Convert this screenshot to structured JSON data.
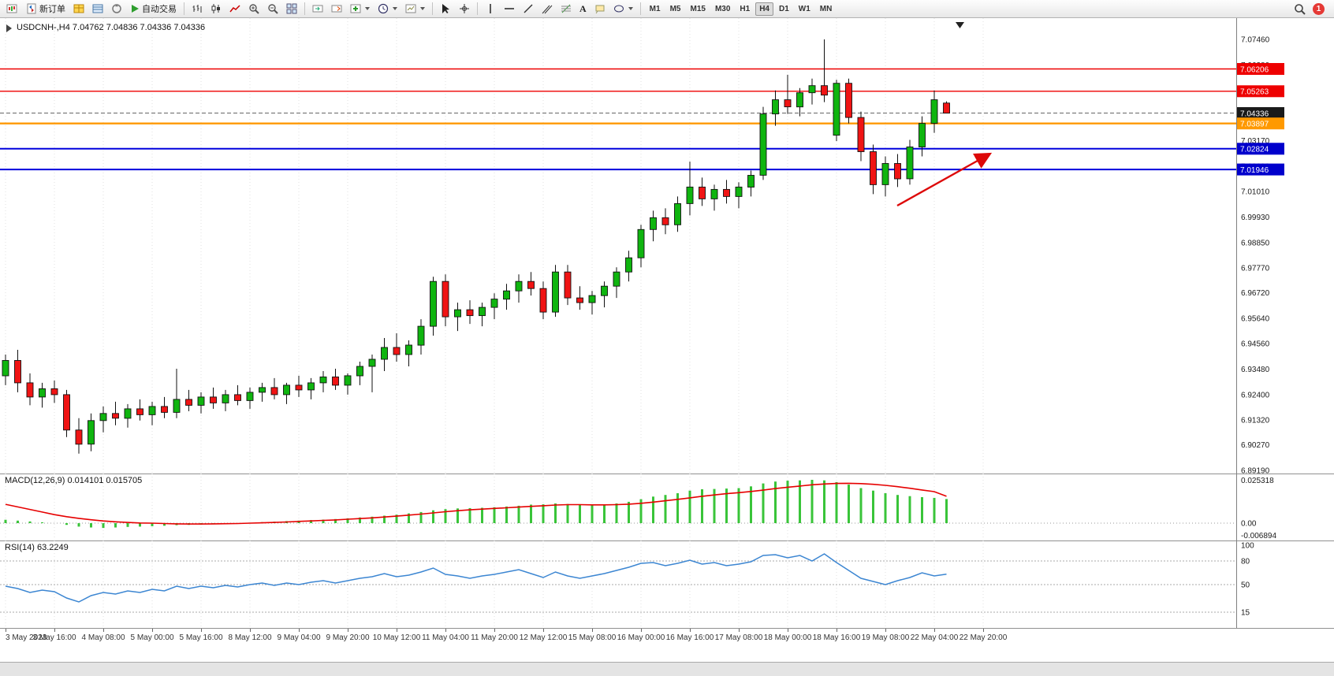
{
  "toolbar": {
    "new_order": "新订单",
    "auto_trading": "自动交易",
    "timeframes": [
      "M1",
      "M5",
      "M15",
      "M30",
      "H1",
      "H4",
      "D1",
      "W1",
      "MN"
    ],
    "active_timeframe": "H4",
    "notification_count": "1",
    "icons": {
      "text_tool": "A"
    }
  },
  "chart": {
    "title": "USDCNH-,H4 7.04762 7.04836 7.04336 7.04336",
    "symbol": "USDCNH-",
    "timeframe": "H4",
    "open": "7.04762",
    "high": "7.04836",
    "low": "7.04336",
    "close": "7.04336"
  },
  "macd": {
    "label": "MACD(12,26,9) 0.014101 0.015705",
    "axis": [
      "0.025318",
      "0.00",
      "-0.006894"
    ],
    "range": [
      -0.006894,
      0.025318
    ],
    "histogram_color": "#39c439",
    "signal_color": "#e60000",
    "histogram": [
      0.002,
      0.0015,
      0.001,
      0.0005,
      0.0,
      -0.001,
      -0.002,
      -0.0025,
      -0.0028,
      -0.0025,
      -0.0022,
      -0.002,
      -0.0018,
      -0.0015,
      -0.0012,
      -0.001,
      -0.0008,
      -0.0005,
      -0.0003,
      0.0,
      0.0003,
      0.0006,
      0.0009,
      0.0012,
      0.0015,
      0.0018,
      0.0021,
      0.0024,
      0.0028,
      0.0033,
      0.0038,
      0.0044,
      0.005,
      0.0057,
      0.0065,
      0.0075,
      0.0082,
      0.0086,
      0.0088,
      0.009,
      0.0093,
      0.0097,
      0.0102,
      0.0108,
      0.011,
      0.0115,
      0.0112,
      0.0108,
      0.0105,
      0.0108,
      0.0115,
      0.0125,
      0.014,
      0.0155,
      0.0165,
      0.0175,
      0.019,
      0.0198,
      0.02,
      0.0202,
      0.0205,
      0.0215,
      0.0232,
      0.0243,
      0.0248,
      0.025,
      0.0253,
      0.025,
      0.024,
      0.0225,
      0.0205,
      0.019,
      0.0175,
      0.0165,
      0.0158,
      0.0152,
      0.0148,
      0.0141
    ],
    "signal": [
      0.011,
      0.0095,
      0.008,
      0.0065,
      0.005,
      0.0038,
      0.0028,
      0.002,
      0.0013,
      0.0008,
      0.0004,
      0.0001,
      0.0,
      -0.0002,
      -0.0004,
      -0.0005,
      -0.0005,
      -0.0004,
      -0.0003,
      -0.0002,
      0.0,
      0.0002,
      0.0004,
      0.0007,
      0.001,
      0.0013,
      0.0016,
      0.0019,
      0.0023,
      0.0027,
      0.0031,
      0.0036,
      0.0041,
      0.0047,
      0.0053,
      0.006,
      0.0067,
      0.0073,
      0.0078,
      0.0082,
      0.0086,
      0.009,
      0.0094,
      0.0098,
      0.0102,
      0.0106,
      0.0108,
      0.0108,
      0.0107,
      0.0107,
      0.0108,
      0.0111,
      0.0116,
      0.0123,
      0.0131,
      0.0139,
      0.0148,
      0.0157,
      0.0165,
      0.0172,
      0.0178,
      0.0185,
      0.0193,
      0.0202,
      0.021,
      0.0217,
      0.0224,
      0.0229,
      0.0232,
      0.0233,
      0.0231,
      0.0227,
      0.0221,
      0.0213,
      0.0204,
      0.0194,
      0.0184,
      0.0157
    ]
  },
  "rsi": {
    "label": "RSI(14) 63.2249",
    "axis": [
      "100",
      "80",
      "50",
      "15"
    ],
    "levels": [
      80,
      50,
      15
    ],
    "line_color": "#3c86d2",
    "values": [
      48,
      45,
      40,
      43,
      41,
      33,
      28,
      36,
      40,
      38,
      42,
      40,
      44,
      42,
      48,
      45,
      48,
      46,
      49,
      47,
      50,
      52,
      49,
      52,
      50,
      53,
      55,
      52,
      55,
      58,
      60,
      64,
      60,
      62,
      66,
      71,
      63,
      61,
      58,
      61,
      63,
      66,
      69,
      64,
      59,
      66,
      61,
      58,
      61,
      64,
      68,
      72,
      77,
      78,
      74,
      77,
      81,
      76,
      78,
      74,
      76,
      79,
      87,
      88,
      84,
      87,
      80,
      89,
      78,
      68,
      58,
      54,
      50,
      55,
      59,
      65,
      61,
      63.22
    ]
  },
  "chart_data": {
    "type": "candlestick",
    "symbol": "USDCNH",
    "timeframe": "H4",
    "title": "USDCNH-,H4 7.04762 7.04836 7.04336 7.04336",
    "price_range": [
      6.8919,
      7.0746
    ],
    "up_color": "#0fb50f",
    "down_color": "#f01414",
    "y_axis_labels": [
      "7.07460",
      "7.06380",
      "7.05300",
      "7.04220",
      "7.03170",
      "7.02090",
      "7.01010",
      "6.99930",
      "6.98850",
      "6.97770",
      "6.96720",
      "6.95640",
      "6.94560",
      "6.93480",
      "6.92400",
      "6.91320",
      "6.90270",
      "6.89190"
    ],
    "x_axis_labels": [
      "3 May 2023",
      "3 May 16:00",
      "4 May 08:00",
      "5 May 00:00",
      "5 May 16:00",
      "8 May 12:00",
      "9 May 04:00",
      "9 May 20:00",
      "10 May 12:00",
      "11 May 04:00",
      "11 May 20:00",
      "12 May 12:00",
      "15 May 08:00",
      "16 May 00:00",
      "16 May 16:00",
      "17 May 08:00",
      "18 May 00:00",
      "18 May 16:00",
      "19 May 08:00",
      "22 May 04:00",
      "22 May 20:00"
    ],
    "hlines": [
      {
        "price": 7.06206,
        "label": "7.06206",
        "color": "#ee0000",
        "badge": "#ee0000",
        "width": 1.4
      },
      {
        "price": 7.05263,
        "label": "7.05263",
        "color": "#ee0000",
        "badge": "#ee0000",
        "width": 1.4
      },
      {
        "price": 7.04336,
        "label": "7.04336",
        "color": "#666666",
        "badge": "#1a1a1a",
        "width": 1,
        "dashed": true
      },
      {
        "price": 7.03897,
        "label": "7.03897",
        "color": "#ff9900",
        "badge": "#ff9900",
        "width": 2.4
      },
      {
        "price": 7.02824,
        "label": "7.02824",
        "color": "#0000dd",
        "badge": "#0000cc",
        "width": 2
      },
      {
        "price": 7.01946,
        "label": "7.01946",
        "color": "#0000dd",
        "badge": "#0000cc",
        "width": 2
      }
    ],
    "annotation_arrow": {
      "from": [
        1138,
        238
      ],
      "to": [
        1256,
        172
      ],
      "color": "#dd0808"
    },
    "candles": [
      [
        6.932,
        6.941,
        6.928,
        6.9385
      ],
      [
        6.9385,
        6.943,
        6.925,
        6.929
      ],
      [
        6.929,
        6.933,
        6.9195,
        6.923
      ],
      [
        6.923,
        6.929,
        6.9185,
        6.9265
      ],
      [
        6.9265,
        6.93,
        6.9205,
        6.924
      ],
      [
        6.924,
        6.926,
        6.906,
        6.909
      ],
      [
        6.909,
        6.914,
        6.899,
        6.903
      ],
      [
        6.903,
        6.916,
        6.9,
        6.913
      ],
      [
        6.913,
        6.919,
        6.908,
        6.916
      ],
      [
        6.916,
        6.921,
        6.911,
        6.914
      ],
      [
        6.914,
        6.92,
        6.91,
        6.918
      ],
      [
        6.918,
        6.922,
        6.913,
        6.9155
      ],
      [
        6.9155,
        6.921,
        6.911,
        6.919
      ],
      [
        6.919,
        6.923,
        6.914,
        6.9165
      ],
      [
        6.9165,
        6.935,
        6.914,
        6.922
      ],
      [
        6.922,
        6.926,
        6.917,
        6.9195
      ],
      [
        6.9195,
        6.925,
        6.916,
        6.923
      ],
      [
        6.923,
        6.927,
        6.918,
        6.9205
      ],
      [
        6.9205,
        6.926,
        6.917,
        6.924
      ],
      [
        6.924,
        6.928,
        6.9195,
        6.9215
      ],
      [
        6.9215,
        6.927,
        6.918,
        6.925
      ],
      [
        6.925,
        6.929,
        6.921,
        6.927
      ],
      [
        6.927,
        6.931,
        6.922,
        6.924
      ],
      [
        6.924,
        6.929,
        6.92,
        6.928
      ],
      [
        6.928,
        6.932,
        6.923,
        6.926
      ],
      [
        6.926,
        6.931,
        6.922,
        6.929
      ],
      [
        6.929,
        6.934,
        6.925,
        6.9315
      ],
      [
        6.9315,
        6.935,
        6.926,
        6.928
      ],
      [
        6.928,
        6.933,
        6.924,
        6.932
      ],
      [
        6.932,
        6.938,
        6.928,
        6.936
      ],
      [
        6.936,
        6.941,
        6.925,
        6.939
      ],
      [
        6.939,
        6.948,
        6.934,
        6.944
      ],
      [
        6.944,
        6.95,
        6.938,
        6.941
      ],
      [
        6.941,
        6.947,
        6.936,
        6.945
      ],
      [
        6.945,
        6.956,
        6.941,
        6.953
      ],
      [
        6.953,
        6.974,
        6.949,
        6.972
      ],
      [
        6.972,
        6.975,
        6.953,
        6.957
      ],
      [
        6.957,
        6.963,
        6.951,
        6.96
      ],
      [
        6.96,
        6.964,
        6.954,
        6.9575
      ],
      [
        6.9575,
        6.963,
        6.953,
        6.961
      ],
      [
        6.961,
        6.967,
        6.956,
        6.9645
      ],
      [
        6.9645,
        6.971,
        6.96,
        6.968
      ],
      [
        6.968,
        6.975,
        6.963,
        6.972
      ],
      [
        6.972,
        6.976,
        6.966,
        6.969
      ],
      [
        6.969,
        6.972,
        6.956,
        6.959
      ],
      [
        6.959,
        6.979,
        6.957,
        6.976
      ],
      [
        6.976,
        6.979,
        6.962,
        6.965
      ],
      [
        6.965,
        6.97,
        6.96,
        6.963
      ],
      [
        6.963,
        6.968,
        6.958,
        6.966
      ],
      [
        6.966,
        6.972,
        6.961,
        6.97
      ],
      [
        6.97,
        6.978,
        6.965,
        6.976
      ],
      [
        6.976,
        6.985,
        6.972,
        6.982
      ],
      [
        6.982,
        6.996,
        6.978,
        6.994
      ],
      [
        6.994,
        7.002,
        6.989,
        6.999
      ],
      [
        6.999,
        7.003,
        6.992,
        6.996
      ],
      [
        6.996,
        7.008,
        6.993,
        7.005
      ],
      [
        7.005,
        7.0228,
        7.0,
        7.012
      ],
      [
        7.012,
        7.016,
        7.004,
        7.007
      ],
      [
        7.007,
        7.013,
        7.002,
        7.011
      ],
      [
        7.011,
        7.015,
        7.005,
        7.008
      ],
      [
        7.008,
        7.014,
        7.003,
        7.012
      ],
      [
        7.012,
        7.019,
        7.008,
        7.017
      ],
      [
        7.017,
        7.046,
        7.015,
        7.043
      ],
      [
        7.043,
        7.053,
        7.038,
        7.049
      ],
      [
        7.049,
        7.0596,
        7.043,
        7.046
      ],
      [
        7.046,
        7.054,
        7.042,
        7.052
      ],
      [
        7.052,
        7.058,
        7.047,
        7.055
      ],
      [
        7.055,
        7.0746,
        7.048,
        7.051
      ],
      [
        7.034,
        7.0575,
        7.0315,
        7.056
      ],
      [
        7.056,
        7.058,
        7.039,
        7.0415
      ],
      [
        7.0415,
        7.044,
        7.023,
        7.027
      ],
      [
        7.027,
        7.03,
        7.009,
        7.013
      ],
      [
        7.013,
        7.025,
        7.008,
        7.022
      ],
      [
        7.022,
        7.026,
        7.012,
        7.0155
      ],
      [
        7.0155,
        7.032,
        7.013,
        7.029
      ],
      [
        7.029,
        7.042,
        7.025,
        7.039
      ],
      [
        7.039,
        7.053,
        7.035,
        7.049
      ],
      [
        7.04762,
        7.04836,
        7.04336,
        7.04336
      ]
    ]
  }
}
